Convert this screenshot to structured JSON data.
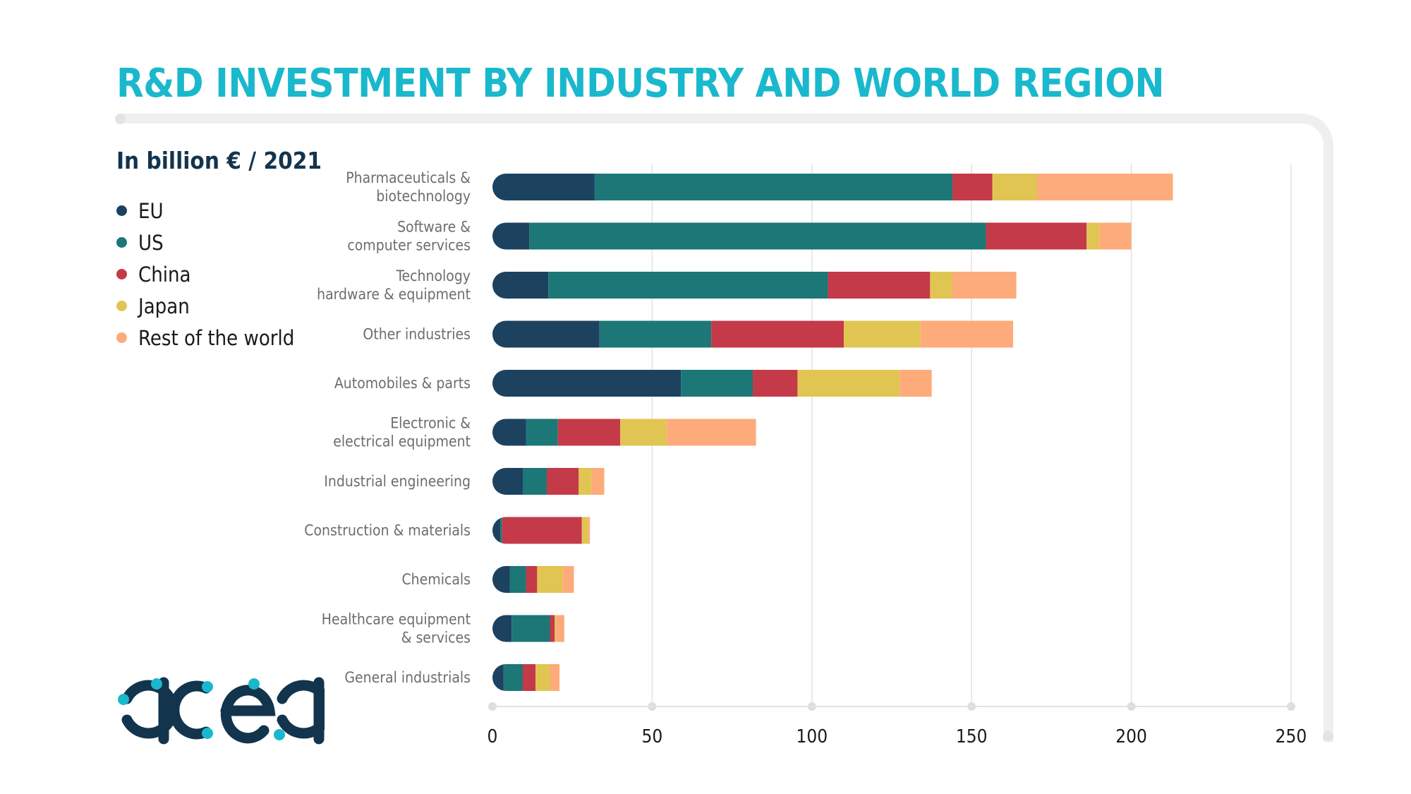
{
  "title": "R&D INVESTMENT BY INDUSTRY AND WORLD REGION",
  "subtitle": "In billion € / 2021",
  "logo_text": "acea",
  "colors": {
    "EU": "#1c4260",
    "US": "#1d7777",
    "China": "#c43a49",
    "Japan": "#e1c552",
    "Rest of the world": "#fdab7a"
  },
  "chart_data": {
    "type": "bar",
    "orientation": "horizontal",
    "stacked": true,
    "title": "R&D INVESTMENT BY INDUSTRY AND WORLD REGION",
    "subtitle": "In billion € / 2021",
    "xlim": [
      0,
      250
    ],
    "xticks": [
      "0",
      "50",
      "100",
      "150",
      "200",
      "250"
    ],
    "grid": true,
    "legend_position": "left",
    "categories": [
      "Pharmaceuticals & biotechnology",
      "Software & computer services",
      "Technology hardware & equipment",
      "Other industries",
      "Automobiles & parts",
      "Electronic & electrical equipment",
      "Industrial engineering",
      "Construction & materials",
      "Chemicals",
      "Healthcare equipment & services",
      "General industrials"
    ],
    "category_lines": [
      [
        "Pharmaceuticals &",
        "biotechnology"
      ],
      [
        "Software &",
        "computer services"
      ],
      [
        "Technology",
        "hardware & equipment"
      ],
      [
        "Other industries"
      ],
      [
        "Automobiles & parts"
      ],
      [
        "Electronic &",
        "electrical equipment"
      ],
      [
        "Industrial engineering"
      ],
      [
        "Construction & materials"
      ],
      [
        "Chemicals"
      ],
      [
        "Healthcare equipment",
        "& services"
      ],
      [
        "General industrials"
      ]
    ],
    "series": [
      {
        "name": "EU",
        "values": [
          32,
          11.5,
          17.5,
          33.5,
          59,
          10.5,
          9.5,
          2.5,
          5.5,
          6,
          3.5
        ]
      },
      {
        "name": "US",
        "values": [
          112,
          143,
          87.5,
          35,
          22.5,
          10,
          7.5,
          0.5,
          5,
          12,
          6
        ]
      },
      {
        "name": "China",
        "values": [
          12.5,
          31.5,
          32,
          41.5,
          14,
          19.5,
          10,
          25,
          3.5,
          1.5,
          4
        ]
      },
      {
        "name": "Japan",
        "values": [
          14,
          4,
          7,
          24,
          32,
          14.5,
          4,
          2,
          8,
          0.5,
          4.5
        ]
      },
      {
        "name": "Rest of the world",
        "values": [
          42.5,
          10,
          20,
          29,
          10,
          28,
          4,
          0.5,
          3.5,
          2.5,
          3
        ]
      }
    ]
  }
}
